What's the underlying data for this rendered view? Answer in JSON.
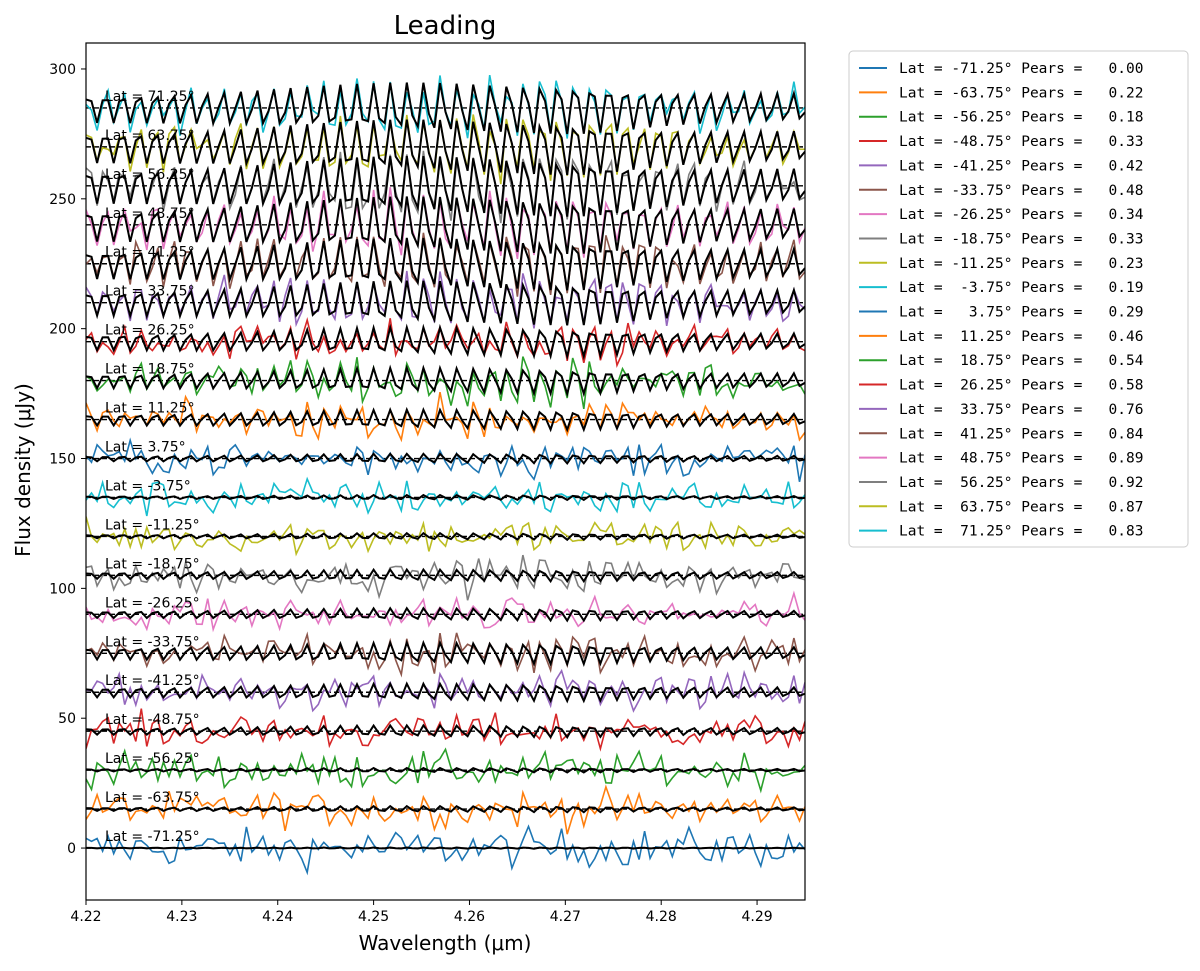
{
  "chart_data": {
    "type": "line",
    "title": "Leading",
    "xlabel": "Wavelength (μm)",
    "ylabel": "Flux density (μJy)",
    "xlim": [
      4.22,
      4.295
    ],
    "ylim": [
      -20,
      310
    ],
    "xticks": [
      4.22,
      4.23,
      4.24,
      4.25,
      4.26,
      4.27,
      4.28,
      4.29
    ],
    "xtick_labels": [
      "4.22",
      "4.23",
      "4.24",
      "4.25",
      "4.26",
      "4.27",
      "4.28",
      "4.29"
    ],
    "yticks": [
      0,
      50,
      100,
      150,
      200,
      250,
      300
    ],
    "ytick_labels": [
      "0",
      "50",
      "100",
      "150",
      "200",
      "250",
      "300"
    ],
    "grid": false,
    "legend_position": "outside-right",
    "series_offset_step": 15,
    "series": [
      {
        "lat": -71.25,
        "label": "Lat = -71.25°",
        "legend": "Lat = -71.25° Pears =   0.00",
        "pearson": 0.0,
        "offset": 0,
        "color": "#1f77b4"
      },
      {
        "lat": -63.75,
        "label": "Lat = -63.75°",
        "legend": "Lat = -63.75° Pears =   0.22",
        "pearson": 0.22,
        "offset": 15,
        "color": "#ff7f0e"
      },
      {
        "lat": -56.25,
        "label": "Lat = -56.25°",
        "legend": "Lat = -56.25° Pears =   0.18",
        "pearson": 0.18,
        "offset": 30,
        "color": "#2ca02c"
      },
      {
        "lat": -48.75,
        "label": "Lat = -48.75°",
        "legend": "Lat = -48.75° Pears =   0.33",
        "pearson": 0.33,
        "offset": 45,
        "color": "#d62728"
      },
      {
        "lat": -41.25,
        "label": "Lat = -41.25°",
        "legend": "Lat = -41.25° Pears =   0.42",
        "pearson": 0.42,
        "offset": 60,
        "color": "#9467bd"
      },
      {
        "lat": -33.75,
        "label": "Lat = -33.75°",
        "legend": "Lat = -33.75° Pears =   0.48",
        "pearson": 0.48,
        "offset": 75,
        "color": "#8c564b"
      },
      {
        "lat": -26.25,
        "label": "Lat = -26.25°",
        "legend": "Lat = -26.25° Pears =   0.34",
        "pearson": 0.34,
        "offset": 90,
        "color": "#e377c2"
      },
      {
        "lat": -18.75,
        "label": "Lat = -18.75°",
        "legend": "Lat = -18.75° Pears =   0.33",
        "pearson": 0.33,
        "offset": 105,
        "color": "#7f7f7f"
      },
      {
        "lat": -11.25,
        "label": "Lat = -11.25°",
        "legend": "Lat = -11.25° Pears =   0.23",
        "pearson": 0.23,
        "offset": 120,
        "color": "#bcbd22"
      },
      {
        "lat": -3.75,
        "label": "Lat = -3.75°",
        "legend": "Lat =  -3.75° Pears =   0.19",
        "pearson": 0.19,
        "offset": 135,
        "color": "#17becf"
      },
      {
        "lat": 3.75,
        "label": "Lat = 3.75°",
        "legend": "Lat =   3.75° Pears =   0.29",
        "pearson": 0.29,
        "offset": 150,
        "color": "#1f77b4"
      },
      {
        "lat": 11.25,
        "label": "Lat = 11.25°",
        "legend": "Lat =  11.25° Pears =   0.46",
        "pearson": 0.46,
        "offset": 165,
        "color": "#ff7f0e"
      },
      {
        "lat": 18.75,
        "label": "Lat = 18.75°",
        "legend": "Lat =  18.75° Pears =   0.54",
        "pearson": 0.54,
        "offset": 180,
        "color": "#2ca02c"
      },
      {
        "lat": 26.25,
        "label": "Lat = 26.25°",
        "legend": "Lat =  26.25° Pears =   0.58",
        "pearson": 0.58,
        "offset": 195,
        "color": "#d62728"
      },
      {
        "lat": 33.75,
        "label": "Lat = 33.75°",
        "legend": "Lat =  33.75° Pears =   0.76",
        "pearson": 0.76,
        "offset": 210,
        "color": "#9467bd"
      },
      {
        "lat": 41.25,
        "label": "Lat = 41.25°",
        "legend": "Lat =  41.25° Pears =   0.84",
        "pearson": 0.84,
        "offset": 225,
        "color": "#8c564b"
      },
      {
        "lat": 48.75,
        "label": "Lat = 48.75°",
        "legend": "Lat =  48.75° Pears =   0.89",
        "pearson": 0.89,
        "offset": 240,
        "color": "#e377c2"
      },
      {
        "lat": 56.25,
        "label": "Lat = 56.25°",
        "legend": "Lat =  56.25° Pears =   0.92",
        "pearson": 0.92,
        "offset": 255,
        "color": "#7f7f7f"
      },
      {
        "lat": 63.75,
        "label": "Lat = 63.75°",
        "legend": "Lat =  63.75° Pears =   0.87",
        "pearson": 0.87,
        "offset": 270,
        "color": "#bcbd22"
      },
      {
        "lat": 71.25,
        "label": "Lat = 71.25°",
        "legend": "Lat =  71.25° Pears =   0.83",
        "pearson": 0.83,
        "offset": 285,
        "color": "#17becf"
      }
    ]
  }
}
